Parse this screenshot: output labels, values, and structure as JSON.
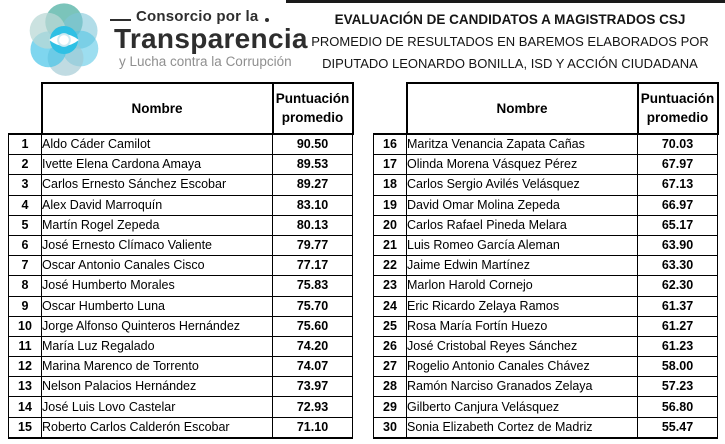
{
  "brand": {
    "line1": "Consorcio por la",
    "line2": "Transparencia",
    "line3": "y Lucha contra la Corrupción"
  },
  "title": {
    "line1": "EVALUACIÓN DE CANDIDATOS A MAGISTRADOS CSJ",
    "line2": "PROMEDIO DE RESULTADOS EN BAREMOS ELABORADOS POR",
    "line3": "DIPUTADO LEONARDO BONILLA, ISD Y ACCIÓN CIUDADANA"
  },
  "headers": {
    "name": "Nombre",
    "score": "Puntuación promedio"
  },
  "colors": {
    "border": "#000000",
    "brand_text": "#2e2e2e",
    "brand_muted": "#8f8f8f",
    "logo_teal": "#5ab5a9",
    "logo_cyan": "#2fc0e4",
    "logo_slate": "#9ec7d2",
    "logo_pale": "#b9d8d6"
  },
  "tables": [
    {
      "side": "left",
      "rows": [
        {
          "rank": "1",
          "name": "Aldo Cáder Camilot",
          "score": "90.50"
        },
        {
          "rank": "2",
          "name": "Ivette Elena Cardona Amaya",
          "score": "89.53"
        },
        {
          "rank": "3",
          "name": "Carlos Ernesto Sánchez Escobar",
          "score": "89.27"
        },
        {
          "rank": "4",
          "name": "Alex David Marroquín",
          "score": "83.10"
        },
        {
          "rank": "5",
          "name": "Martín Rogel Zepeda",
          "score": "80.13"
        },
        {
          "rank": "6",
          "name": "José Ernesto Clímaco Valiente",
          "score": "79.77"
        },
        {
          "rank": "7",
          "name": "Oscar Antonio Canales Cisco",
          "score": "77.17"
        },
        {
          "rank": "8",
          "name": "José Humberto Morales",
          "score": "75.83"
        },
        {
          "rank": "9",
          "name": "Oscar Humberto Luna",
          "score": "75.70"
        },
        {
          "rank": "10",
          "name": "Jorge Alfonso Quinteros Hernández",
          "score": "75.60"
        },
        {
          "rank": "11",
          "name": "María Luz Regalado",
          "score": "74.20"
        },
        {
          "rank": "12",
          "name": "Marina Marenco de Torrento",
          "score": "74.07"
        },
        {
          "rank": "13",
          "name": "Nelson Palacios Hernández",
          "score": "73.97"
        },
        {
          "rank": "14",
          "name": "José Luis Lovo Castelar",
          "score": "72.93"
        },
        {
          "rank": "15",
          "name": "Roberto Carlos Calderón Escobar",
          "score": "71.10"
        }
      ]
    },
    {
      "side": "right",
      "rows": [
        {
          "rank": "16",
          "name": "Maritza Venancia Zapata Cañas",
          "score": "70.03"
        },
        {
          "rank": "17",
          "name": "Olinda Morena Vásquez Pérez",
          "score": "67.97"
        },
        {
          "rank": "18",
          "name": "Carlos Sergio Avilés Velásquez",
          "score": "67.13"
        },
        {
          "rank": "19",
          "name": "David Omar Molina Zepeda",
          "score": "66.97"
        },
        {
          "rank": "20",
          "name": "Carlos Rafael Pineda Melara",
          "score": "65.17"
        },
        {
          "rank": "21",
          "name": "Luis Romeo García Aleman",
          "score": "63.90"
        },
        {
          "rank": "22",
          "name": "Jaime Edwin Martínez",
          "score": "63.30"
        },
        {
          "rank": "23",
          "name": "Marlon Harold Cornejo",
          "score": "62.30"
        },
        {
          "rank": "24",
          "name": "Eric Ricardo Zelaya Ramos",
          "score": "61.37"
        },
        {
          "rank": "25",
          "name": "Rosa María Fortín Huezo",
          "score": "61.27"
        },
        {
          "rank": "26",
          "name": "José Cristobal Reyes Sánchez",
          "score": "61.23"
        },
        {
          "rank": "27",
          "name": "Rogelio Antonio Canales Chávez",
          "score": "58.00"
        },
        {
          "rank": "28",
          "name": "Ramón Narciso Granados Zelaya",
          "score": "57.23"
        },
        {
          "rank": "29",
          "name": "Gilberto Canjura Velásquez",
          "score": "56.80"
        },
        {
          "rank": "30",
          "name": "Sonia Elizabeth Cortez de Madriz",
          "score": "55.47"
        }
      ]
    }
  ]
}
